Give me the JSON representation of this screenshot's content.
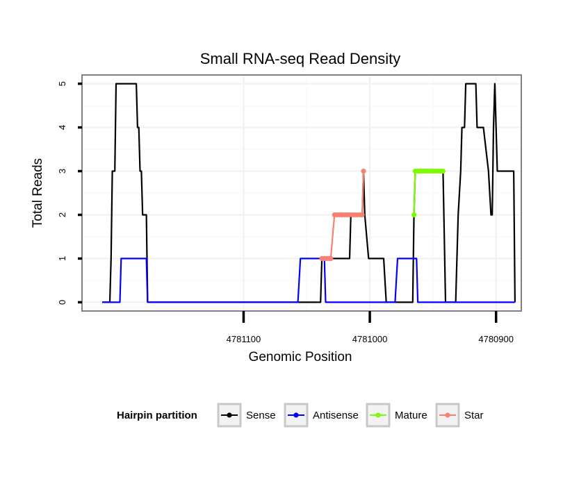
{
  "chart_data": {
    "type": "line",
    "title": "Small RNA-seq Read Density",
    "xlabel": "Genomic Position",
    "ylabel": "Total Reads",
    "xlim": [
      4781228,
      4780880
    ],
    "x_reversed": true,
    "ylim": [
      -0.2,
      5.2
    ],
    "x_ticks": [
      4781100,
      4781000,
      4780900
    ],
    "x_tick_labels": [
      "4781100",
      "4781000",
      "4780900"
    ],
    "y_ticks": [
      0,
      1,
      2,
      3,
      4,
      5
    ],
    "y_tick_labels": [
      "0",
      "1",
      "2",
      "3",
      "4",
      "5"
    ],
    "grid": true,
    "legend": {
      "title": "Hairpin partition",
      "position": "bottom",
      "entries": [
        {
          "name": "Sense",
          "color": "#000000"
        },
        {
          "name": "Antisense",
          "color": "#0000ff"
        },
        {
          "name": "Mature",
          "color": "#7cfc00"
        },
        {
          "name": "Star",
          "color": "#fa8072"
        }
      ]
    },
    "series": [
      {
        "name": "Sense",
        "color": "#000000",
        "points": [
          [
            4781212,
            0
          ],
          [
            4781206,
            0
          ],
          [
            4781205,
            1
          ],
          [
            4781204,
            3
          ],
          [
            4781202,
            3
          ],
          [
            4781201,
            5
          ],
          [
            4781185,
            5
          ],
          [
            4781184,
            4
          ],
          [
            4781183,
            4
          ],
          [
            4781182,
            3
          ],
          [
            4781181,
            3
          ],
          [
            4781180,
            2
          ],
          [
            4781177,
            2
          ],
          [
            4781176,
            0
          ],
          [
            4781044,
            0
          ],
          [
            4781039,
            0
          ],
          [
            4781038,
            1
          ],
          [
            4781016,
            1
          ],
          [
            4781015,
            2
          ],
          [
            4781006,
            2
          ],
          [
            4781005,
            3
          ],
          [
            4781004,
            2
          ],
          [
            4781001,
            1
          ],
          [
            4780989,
            1
          ],
          [
            4780987,
            0
          ],
          [
            4780966,
            0
          ],
          [
            4780965,
            2
          ],
          [
            4780964,
            3
          ],
          [
            4780942,
            3
          ],
          [
            4780940,
            0
          ],
          [
            4780932,
            0
          ],
          [
            4780930,
            2
          ],
          [
            4780928,
            3
          ],
          [
            4780927,
            4
          ],
          [
            4780925,
            4
          ],
          [
            4780924,
            5
          ],
          [
            4780916,
            5
          ],
          [
            4780915,
            4
          ],
          [
            4780910,
            4
          ],
          [
            4780906,
            3
          ],
          [
            4780904,
            2
          ],
          [
            4780903,
            2
          ],
          [
            4780902,
            4
          ],
          [
            4780901,
            5
          ],
          [
            4780900,
            4
          ],
          [
            4780899,
            3
          ],
          [
            4780886,
            3
          ],
          [
            4780885,
            0
          ]
        ]
      },
      {
        "name": "Antisense",
        "color": "#0000ff",
        "points": [
          [
            4781212,
            0
          ],
          [
            4781198,
            0
          ],
          [
            4781197,
            1
          ],
          [
            4781177,
            1
          ],
          [
            4781176,
            0
          ],
          [
            4781057,
            0
          ],
          [
            4781055,
            1
          ],
          [
            4781036,
            1
          ],
          [
            4781035,
            0
          ],
          [
            4780980,
            0
          ],
          [
            4780978,
            1
          ],
          [
            4780963,
            1
          ],
          [
            4780962,
            0
          ],
          [
            4780885,
            0
          ]
        ]
      },
      {
        "name": "Mature",
        "color": "#7cfc00",
        "points": [
          [
            4780965,
            2
          ],
          [
            4780964,
            3
          ],
          [
            4780962,
            3
          ],
          [
            4780960,
            3
          ],
          [
            4780958,
            3
          ],
          [
            4780956,
            3
          ],
          [
            4780954,
            3
          ],
          [
            4780952,
            3
          ],
          [
            4780950,
            3
          ],
          [
            4780948,
            3
          ],
          [
            4780946,
            3
          ],
          [
            4780944,
            3
          ],
          [
            4780942,
            3
          ]
        ]
      },
      {
        "name": "Star",
        "color": "#fa8072",
        "points": [
          [
            4781038,
            1
          ],
          [
            4781036,
            1
          ],
          [
            4781034,
            1
          ],
          [
            4781032,
            1
          ],
          [
            4781031,
            1
          ],
          [
            4781028,
            2
          ],
          [
            4781026,
            2
          ],
          [
            4781024,
            2
          ],
          [
            4781022,
            2
          ],
          [
            4781020,
            2
          ],
          [
            4781018,
            2
          ],
          [
            4781016,
            2
          ],
          [
            4781014,
            2
          ],
          [
            4781012,
            2
          ],
          [
            4781010,
            2
          ],
          [
            4781008,
            2
          ],
          [
            4781006,
            2
          ],
          [
            4781005,
            3
          ]
        ]
      }
    ]
  }
}
